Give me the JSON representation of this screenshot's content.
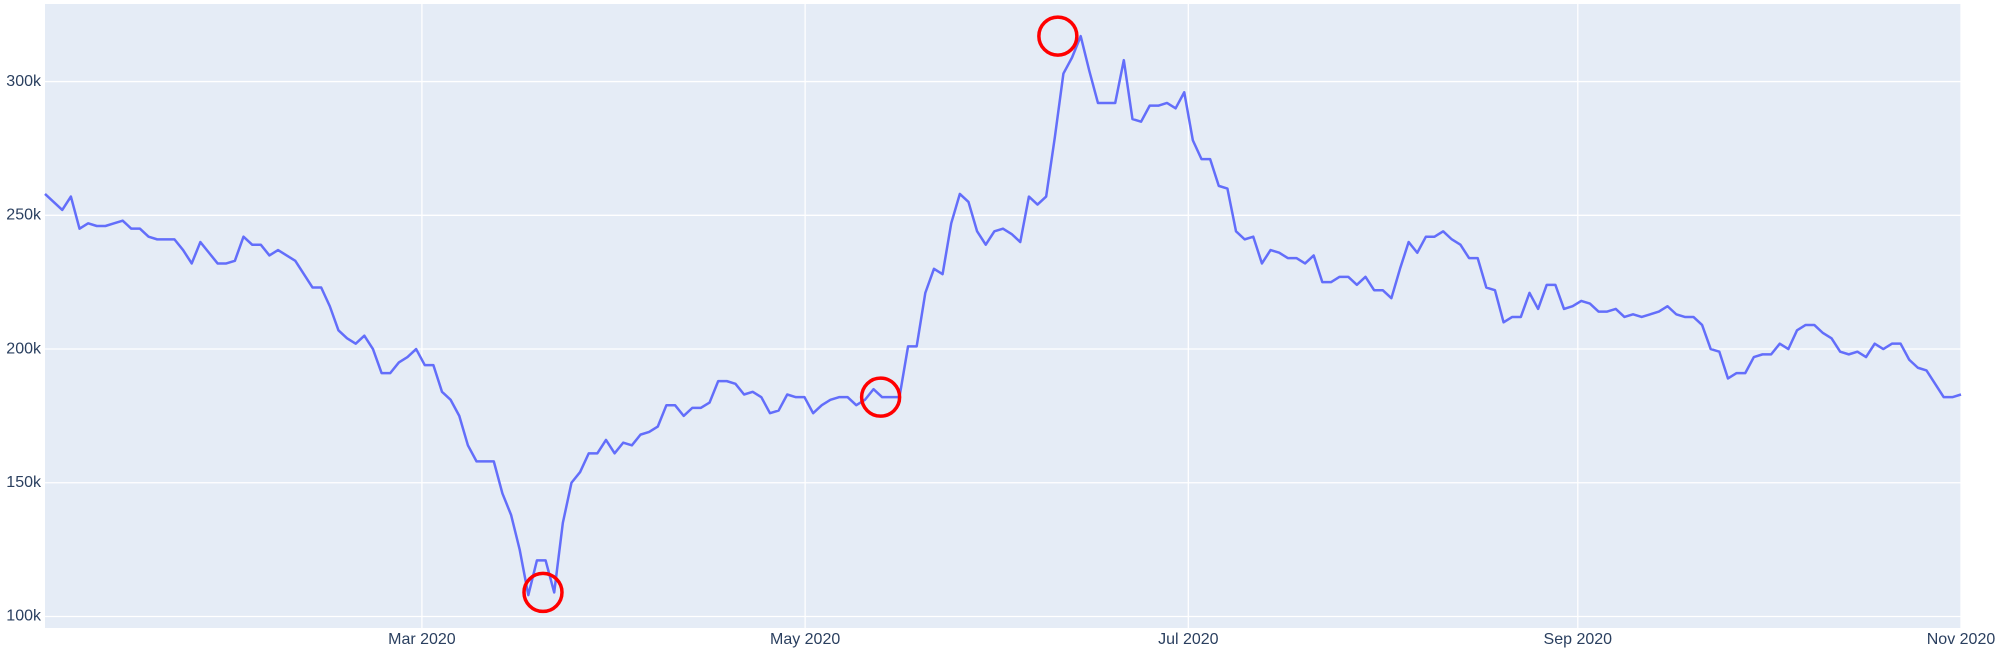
{
  "chart_data": {
    "type": "line",
    "xlim": [
      "2020-01",
      "2020-11"
    ],
    "xticks": [
      {
        "value": "2020-03",
        "label": "Mar 2020"
      },
      {
        "value": "2020-05",
        "label": "May 2020"
      },
      {
        "value": "2020-07",
        "label": "Jul 2020"
      },
      {
        "value": "2020-09",
        "label": "Sep 2020"
      },
      {
        "value": "2020-11",
        "label": "Nov 2020"
      }
    ],
    "ylim": [
      95700,
      329000
    ],
    "yticks": [
      {
        "value": 100000,
        "label": "100k"
      },
      {
        "value": 150000,
        "label": "150k"
      },
      {
        "value": 200000,
        "label": "200k"
      },
      {
        "value": 250000,
        "label": "250k"
      },
      {
        "value": 300000,
        "label": "300k"
      }
    ],
    "grid": true,
    "background": "#e5ecf6",
    "series": [
      {
        "color": "#636efa",
        "mode": "lines",
        "values": [
          258000,
          255000,
          252000,
          257000,
          245000,
          247000,
          246000,
          246000,
          247000,
          248000,
          245000,
          245000,
          242000,
          241000,
          241000,
          241000,
          237000,
          232000,
          240000,
          236000,
          232000,
          232000,
          233000,
          242000,
          239000,
          239000,
          235000,
          237000,
          235000,
          233000,
          228000,
          223000,
          223000,
          216000,
          207000,
          204000,
          202000,
          205000,
          200000,
          191000,
          191000,
          195000,
          197000,
          200000,
          194000,
          194000,
          184000,
          181000,
          175000,
          164000,
          158000,
          158000,
          158000,
          146000,
          138000,
          125000,
          108000,
          121000,
          121000,
          109000,
          135000,
          150000,
          154000,
          161000,
          161000,
          166000,
          161000,
          165000,
          164000,
          168000,
          169000,
          171000,
          179000,
          179000,
          175000,
          178000,
          178000,
          180000,
          188000,
          188000,
          187000,
          183000,
          184000,
          182000,
          176000,
          177000,
          183000,
          182000,
          182000,
          176000,
          179000,
          181000,
          182000,
          182000,
          179000,
          181000,
          185000,
          182000,
          182000,
          182000,
          201000,
          201000,
          221000,
          230000,
          228000,
          247000,
          258000,
          255000,
          244000,
          239000,
          244000,
          245000,
          243000,
          240000,
          257000,
          254000,
          257000,
          279000,
          303000,
          309000,
          317000,
          304000,
          292000,
          292000,
          292000,
          308000,
          286000,
          285000,
          291000,
          291000,
          292000,
          290000,
          296000,
          278000,
          271000,
          271000,
          261000,
          260000,
          244000,
          241000,
          242000,
          232000,
          237000,
          236000,
          234000,
          234000,
          232000,
          235000,
          225000,
          225000,
          227000,
          227000,
          224000,
          227000,
          222000,
          222000,
          219000,
          230000,
          240000,
          236000,
          242000,
          242000,
          244000,
          241000,
          239000,
          234000,
          234000,
          223000,
          222000,
          210000,
          212000,
          212000,
          221000,
          215000,
          224000,
          224000,
          215000,
          216000,
          218000,
          217000,
          214000,
          214000,
          215000,
          212000,
          213000,
          212000,
          213000,
          214000,
          216000,
          213000,
          212000,
          212000,
          209000,
          200000,
          199000,
          189000,
          191000,
          191000,
          197000,
          198000,
          198000,
          202000,
          200000,
          207000,
          209000,
          209000,
          206000,
          204000,
          199000,
          198000,
          199000,
          197000,
          202000,
          200000,
          202000,
          202000,
          196000,
          193000,
          192000,
          187000,
          182000,
          182000,
          183000
        ]
      },
      {
        "color": "#ff0000",
        "mode": "markers",
        "values": [
          null,
          null,
          null,
          null,
          null,
          null,
          null,
          null,
          null,
          null,
          null,
          null,
          null,
          null,
          null,
          null,
          null,
          null,
          null,
          null,
          null,
          null,
          null,
          null,
          null,
          null,
          null,
          null,
          null,
          null,
          null,
          null,
          null,
          null,
          null,
          null,
          null,
          null,
          null,
          null,
          null,
          null,
          null,
          null,
          null,
          null,
          null,
          null,
          null,
          null,
          null,
          null,
          null,
          null,
          null,
          null,
          null,
          null,
          null,
          109000,
          null,
          null,
          null,
          null,
          null,
          null,
          null,
          null,
          null,
          null,
          null,
          null,
          null,
          null,
          null,
          null,
          null,
          null,
          null,
          null,
          null,
          null,
          null,
          null,
          null,
          null,
          null,
          null,
          null,
          null,
          null,
          null,
          null,
          null,
          null,
          null,
          null,
          null,
          null,
          182000,
          null,
          null,
          null,
          null,
          null,
          null,
          null,
          null,
          null,
          null,
          null,
          null,
          null,
          null,
          null,
          null,
          null,
          null,
          null,
          null,
          317000,
          null,
          null,
          null,
          null,
          null,
          null,
          null,
          null,
          null,
          null,
          null,
          null,
          null,
          null,
          null,
          null,
          null,
          null,
          null,
          null,
          null,
          null,
          null,
          null,
          null,
          null,
          null,
          null,
          null,
          null,
          null,
          null,
          null,
          null,
          null,
          null,
          null,
          null,
          null,
          null,
          null,
          null,
          null,
          null,
          null,
          null,
          null,
          null,
          null,
          null,
          null,
          null,
          null,
          null,
          null,
          null,
          null,
          null,
          null,
          null,
          null,
          null,
          null,
          null,
          null,
          null,
          null,
          null,
          null,
          null,
          null,
          null,
          null,
          null,
          null,
          null,
          null,
          null,
          null,
          null,
          null,
          null,
          null,
          null,
          null,
          null,
          null,
          null,
          null,
          null,
          null,
          null,
          null,
          null,
          null,
          null,
          null,
          null,
          null,
          null,
          null,
          null,
          null,
          null,
          null,
          null,
          null
        ]
      }
    ]
  }
}
